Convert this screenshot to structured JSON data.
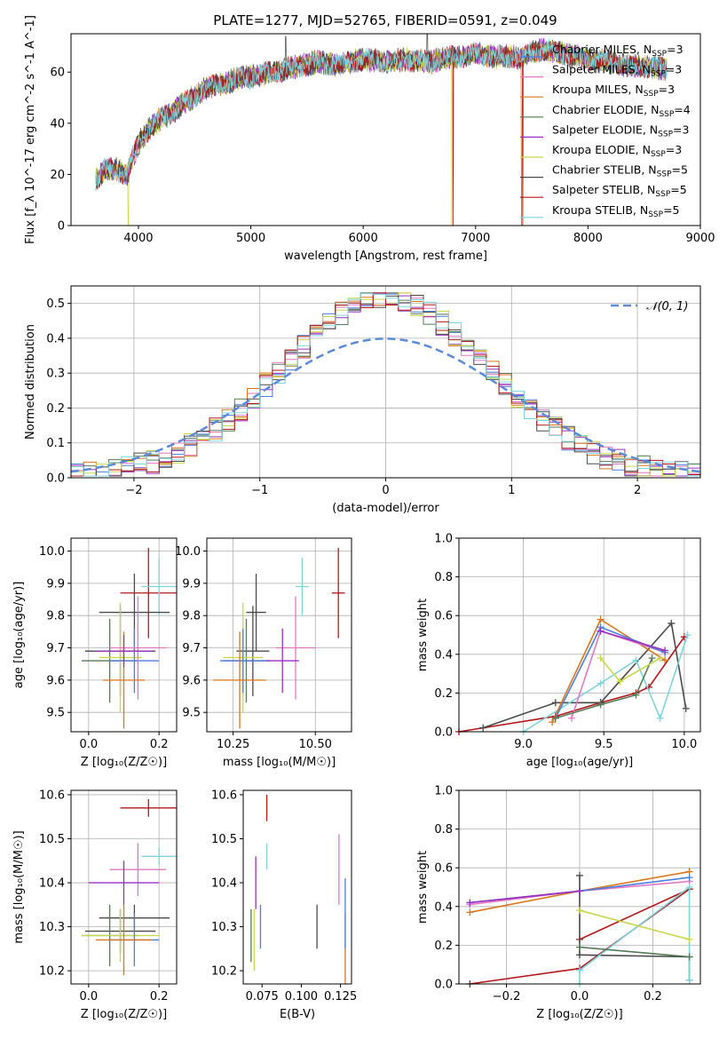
{
  "chart_data": [
    {
      "type": "line",
      "title": "PLATE=1277, MJD=52765, FIBERID=0591, z=0.049",
      "xlabel": "wavelength [Angstrom, rest frame]",
      "ylabel": "Flux [f_λ 10^-17 erg cm^-2 s^-1 A^-1]",
      "xlim": [
        3400,
        9000
      ],
      "ylim": [
        0,
        75
      ],
      "xticks": [
        "4000",
        "5000",
        "6000",
        "7000",
        "8000",
        "9000"
      ],
      "yticks": [
        "0",
        "20",
        "40",
        "60"
      ],
      "spectrum_anchors": {
        "x": [
          3620,
          3700,
          3800,
          3900,
          3950,
          4000,
          4100,
          4200,
          4300,
          4400,
          4500,
          4600,
          4700,
          4800,
          4900,
          5000,
          5200,
          5400,
          5600,
          5800,
          6000,
          6200,
          6400,
          6600,
          6800,
          7000,
          7200,
          7400,
          7600,
          7800,
          8000,
          8200,
          8400,
          8600,
          8700
        ],
        "y": [
          18,
          22,
          22,
          20,
          27,
          32,
          38,
          42,
          44,
          48,
          50,
          54,
          55,
          56,
          58,
          58,
          60,
          62,
          64,
          63,
          65,
          64,
          65,
          64,
          66,
          67,
          66,
          66,
          69,
          67,
          65,
          64,
          62,
          62,
          61
        ]
      },
      "spike_dropouts": [
        {
          "x": 3910,
          "series": "Kroupa ELODIE"
        },
        {
          "x": 6790,
          "series": "Kroupa ELODIE"
        },
        {
          "x": 6800,
          "series": "Salpeter STELIB"
        },
        {
          "x": 7410,
          "series": "Kroupa MILES"
        },
        {
          "x": 7420,
          "series": "Salpeter STELIB"
        }
      ],
      "legend": [
        {
          "label": "Chabrier MILES, N",
          "sub": "SSP",
          "suffix": "=3",
          "color": "#4c7ee0"
        },
        {
          "label": "Salpeter MILES, N",
          "sub": "SSP",
          "suffix": "=3",
          "color": "#e377c2"
        },
        {
          "label": "Kroupa MILES, N",
          "sub": "SSP",
          "suffix": "=3",
          "color": "#d9751a"
        },
        {
          "label": "Chabrier ELODIE, N",
          "sub": "SSP",
          "suffix": "=4",
          "color": "#557a55"
        },
        {
          "label": "Salpeter ELODIE, N",
          "sub": "SSP",
          "suffix": "=3",
          "color": "#9b30c0"
        },
        {
          "label": "Kroupa ELODIE, N",
          "sub": "SSP",
          "suffix": "=3",
          "color": "#c8d74a"
        },
        {
          "label": "Chabrier STELIB, N",
          "sub": "SSP",
          "suffix": "=5",
          "color": "#4a4a4a"
        },
        {
          "label": "Salpeter STELIB, N",
          "sub": "SSP",
          "suffix": "=5",
          "color": "#b2181b"
        },
        {
          "label": "Kroupa STELIB, N",
          "sub": "SSP",
          "suffix": "=5",
          "color": "#7fd3dc"
        }
      ]
    },
    {
      "type": "line",
      "xlabel": "(data-model)/error",
      "ylabel": "Normed distribution",
      "xlim": [
        -2.5,
        2.5
      ],
      "ylim": [
        0,
        0.55
      ],
      "xticks": [
        "−2",
        "−1",
        "0",
        "1",
        "2"
      ],
      "yticks": [
        "0.0",
        "0.1",
        "0.2",
        "0.3",
        "0.4",
        "0.5"
      ],
      "grid": true,
      "legend_label": "𝒩(0, 1)",
      "legend_color": "#5b8bd6"
    },
    {
      "type": "scatter",
      "xlabel": "Z [log₁₀(Z/Z☉)]",
      "ylabel": "age  [log₁₀(age/yr)]",
      "xlim": [
        -0.05,
        0.25
      ],
      "ylim": [
        9.44,
        10.04
      ],
      "xticks": [
        "0.0",
        "0.2"
      ],
      "yticks": [
        "9.5",
        "9.6",
        "9.7",
        "9.8",
        "9.9",
        "10.0"
      ],
      "grid": true,
      "points": [
        {
          "x": 0.17,
          "y": 9.87,
          "xerr": 0.08,
          "yerr": 0.14,
          "color": "#b2181b"
        },
        {
          "x": 0.2,
          "y": 9.89,
          "xerr": 0.05,
          "yerr": 0.09,
          "color": "#7fd3dc"
        },
        {
          "x": 0.13,
          "y": 9.81,
          "xerr": 0.1,
          "yerr": 0.12,
          "color": "#4a4a4a"
        },
        {
          "x": 0.09,
          "y": 9.69,
          "xerr": 0.1,
          "yerr": 0.14,
          "color": "#4a4a4a"
        },
        {
          "x": 0.06,
          "y": 9.66,
          "xerr": 0.08,
          "yerr": 0.13,
          "color": "#557a55"
        },
        {
          "x": 0.09,
          "y": 9.67,
          "xerr": 0.06,
          "yerr": 0.17,
          "color": "#c8d74a"
        },
        {
          "x": 0.13,
          "y": 9.66,
          "xerr": 0.07,
          "yerr": 0.1,
          "color": "#4c7ee0"
        },
        {
          "x": 0.14,
          "y": 9.7,
          "xerr": 0.08,
          "yerr": 0.16,
          "color": "#e377c2"
        },
        {
          "x": 0.1,
          "y": 9.6,
          "xerr": 0.06,
          "yerr": 0.15,
          "color": "#d9751a"
        },
        {
          "x": 0.1,
          "y": 9.69,
          "xerr": 0.08,
          "yerr": 0.05,
          "color": "#9b30c0"
        }
      ]
    },
    {
      "type": "scatter",
      "xlabel": "mass [log₁₀(M/M☉)]",
      "xlim": [
        10.17,
        10.61
      ],
      "ylim": [
        9.44,
        10.04
      ],
      "xticks": [
        "10.25",
        "10.50"
      ],
      "yticks": [
        "9.5",
        "9.6",
        "9.7",
        "9.8",
        "9.9",
        "10.0"
      ],
      "grid": true,
      "points": [
        {
          "x": 10.57,
          "y": 9.87,
          "xerr": 0.02,
          "yerr": 0.14,
          "color": "#b2181b"
        },
        {
          "x": 10.46,
          "y": 9.89,
          "xerr": 0.02,
          "yerr": 0.09,
          "color": "#7fd3dc"
        },
        {
          "x": 10.32,
          "y": 9.81,
          "xerr": 0.03,
          "yerr": 0.12,
          "color": "#4a4a4a"
        },
        {
          "x": 10.31,
          "y": 9.69,
          "xerr": 0.05,
          "yerr": 0.14,
          "color": "#4a4a4a"
        },
        {
          "x": 10.29,
          "y": 9.66,
          "xerr": 0.07,
          "yerr": 0.13,
          "color": "#557a55"
        },
        {
          "x": 10.28,
          "y": 9.67,
          "xerr": 0.06,
          "yerr": 0.17,
          "color": "#c8d74a"
        },
        {
          "x": 10.28,
          "y": 9.66,
          "xerr": 0.07,
          "yerr": 0.1,
          "color": "#4c7ee0"
        },
        {
          "x": 10.44,
          "y": 9.7,
          "xerr": 0.06,
          "yerr": 0.16,
          "color": "#e377c2"
        },
        {
          "x": 10.27,
          "y": 9.6,
          "xerr": 0.08,
          "yerr": 0.15,
          "color": "#d9751a"
        },
        {
          "x": 10.4,
          "y": 9.66,
          "xerr": 0.05,
          "yerr": 0.1,
          "color": "#9b30c0"
        }
      ]
    },
    {
      "type": "line",
      "xlabel": "age  [log₁₀(age/yr)]",
      "ylabel": "mass weight",
      "xlim": [
        8.6,
        10.1
      ],
      "ylim": [
        0,
        1
      ],
      "xticks": [
        "9.0",
        "9.5",
        "10.0"
      ],
      "yticks": [
        "0.0",
        "0.2",
        "0.4",
        "0.6",
        "0.8",
        "1.0"
      ],
      "grid": true,
      "series": [
        {
          "color": "#b2181b",
          "x": [
            8.6,
            9.2,
            9.48,
            9.7,
            9.78,
            10.0
          ],
          "y": [
            0.0,
            0.08,
            0.15,
            0.2,
            0.23,
            0.49
          ]
        },
        {
          "color": "#4a4a4a",
          "x": [
            8.75,
            9.2,
            9.48,
            9.92,
            10.01
          ],
          "y": [
            0.02,
            0.15,
            0.15,
            0.56,
            0.12
          ]
        },
        {
          "color": "#7fd3dc",
          "x": [
            9.0,
            9.48,
            9.7,
            9.85,
            10.02
          ],
          "y": [
            0.0,
            0.25,
            0.37,
            0.07,
            0.5
          ]
        },
        {
          "color": "#d9751a",
          "x": [
            9.18,
            9.48,
            9.88
          ],
          "y": [
            0.05,
            0.58,
            0.37
          ]
        },
        {
          "color": "#e377c2",
          "x": [
            9.3,
            9.48,
            9.88
          ],
          "y": [
            0.07,
            0.52,
            0.41
          ]
        },
        {
          "color": "#4c7ee0",
          "x": [
            9.2,
            9.48,
            9.88
          ],
          "y": [
            0.07,
            0.54,
            0.41
          ]
        },
        {
          "color": "#557a55",
          "x": [
            9.2,
            9.48,
            9.7,
            9.8
          ],
          "y": [
            0.07,
            0.14,
            0.19,
            0.38
          ]
        },
        {
          "color": "#c8d74a",
          "x": [
            9.48,
            9.6,
            9.85
          ],
          "y": [
            0.38,
            0.26,
            0.38
          ]
        },
        {
          "color": "#9b30c0",
          "x": [
            9.48,
            9.88
          ],
          "y": [
            0.52,
            0.42
          ]
        }
      ]
    },
    {
      "type": "scatter",
      "xlabel": "Z [log₁₀(Z/Z☉)]",
      "ylabel": "mass [log₁₀(M/M☉)]",
      "xlim": [
        -0.05,
        0.25
      ],
      "ylim": [
        10.17,
        10.61
      ],
      "xticks": [
        "0.0",
        "0.2"
      ],
      "yticks": [
        "10.2",
        "10.3",
        "10.4",
        "10.5",
        "10.6"
      ],
      "grid": true,
      "points": [
        {
          "x": 0.17,
          "y": 10.57,
          "xerr": 0.08,
          "yerr": 0.02,
          "color": "#b2181b"
        },
        {
          "x": 0.2,
          "y": 10.46,
          "xerr": 0.05,
          "yerr": 0.02,
          "color": "#7fd3dc"
        },
        {
          "x": 0.13,
          "y": 10.32,
          "xerr": 0.1,
          "yerr": 0.03,
          "color": "#4a4a4a"
        },
        {
          "x": 0.09,
          "y": 10.29,
          "xerr": 0.1,
          "yerr": 0.05,
          "color": "#4a4a4a"
        },
        {
          "x": 0.06,
          "y": 10.28,
          "xerr": 0.08,
          "yerr": 0.07,
          "color": "#557a55"
        },
        {
          "x": 0.09,
          "y": 10.28,
          "xerr": 0.11,
          "yerr": 0.06,
          "color": "#c8d74a"
        },
        {
          "x": 0.13,
          "y": 10.27,
          "xerr": 0.07,
          "yerr": 0.06,
          "color": "#4c7ee0"
        },
        {
          "x": 0.14,
          "y": 10.43,
          "xerr": 0.08,
          "yerr": 0.06,
          "color": "#e377c2"
        },
        {
          "x": 0.1,
          "y": 10.27,
          "xerr": 0.08,
          "yerr": 0.08,
          "color": "#d9751a"
        },
        {
          "x": 0.1,
          "y": 10.4,
          "xerr": 0.1,
          "yerr": 0.05,
          "color": "#9b30c0"
        }
      ]
    },
    {
      "type": "scatter",
      "xlabel": "E(B-V)",
      "xlim": [
        0.063,
        0.132
      ],
      "ylim": [
        10.17,
        10.61
      ],
      "xticks": [
        "0.075",
        "0.100",
        "0.125"
      ],
      "yticks": [
        "10.2",
        "10.3",
        "10.4",
        "10.5",
        "10.6"
      ],
      "grid": false,
      "points": [
        {
          "x": 0.078,
          "y": 10.57,
          "yerr": 0.03,
          "color": "#b2181b"
        },
        {
          "x": 0.078,
          "y": 10.46,
          "yerr": 0.03,
          "color": "#7fd3dc"
        },
        {
          "x": 0.071,
          "y": 10.4,
          "yerr": 0.06,
          "color": "#9b30c0"
        },
        {
          "x": 0.068,
          "y": 10.28,
          "yerr": 0.06,
          "color": "#557a55"
        },
        {
          "x": 0.07,
          "y": 10.27,
          "yerr": 0.07,
          "color": "#c8d74a"
        },
        {
          "x": 0.074,
          "y": 10.3,
          "yerr": 0.05,
          "color": "#4c7ee0"
        },
        {
          "x": 0.11,
          "y": 10.3,
          "yerr": 0.05,
          "color": "#4a4a4a"
        },
        {
          "x": 0.124,
          "y": 10.43,
          "yerr": 0.08,
          "color": "#e377c2"
        },
        {
          "x": 0.128,
          "y": 10.25,
          "yerr": 0.08,
          "color": "#d9751a"
        },
        {
          "x": 0.128,
          "y": 10.33,
          "yerr": 0.08,
          "color": "#4c7ee0"
        }
      ]
    },
    {
      "type": "line",
      "xlabel": "Z [log₁₀(Z/Z☉)]",
      "ylabel": "mass weight",
      "xlim": [
        -0.33,
        0.33
      ],
      "ylim": [
        0,
        1
      ],
      "xticks": [
        "−0.2",
        "0.0",
        "0.2"
      ],
      "yticks": [
        "0.0",
        "0.2",
        "0.4",
        "0.6",
        "0.8",
        "1.0"
      ],
      "grid": true,
      "series": [
        {
          "color": "#d9751a",
          "x": [
            -0.3,
            0.0,
            0.3
          ],
          "y": [
            0.37,
            0.48,
            0.58
          ]
        },
        {
          "color": "#e377c2",
          "x": [
            -0.3,
            0.0,
            0.3
          ],
          "y": [
            0.41,
            0.48,
            0.53
          ]
        },
        {
          "color": "#4c7ee0",
          "x": [
            -0.3,
            0.0,
            0.3
          ],
          "y": [
            0.42,
            0.48,
            0.55
          ]
        },
        {
          "color": "#b2181b",
          "x": [
            -0.3,
            0.0,
            0.3,
            0.0,
            0.3
          ],
          "y": [
            0.0,
            0.08,
            0.49,
            0.23,
            0.49
          ]
        },
        {
          "color": "#4a4a4a",
          "x": [
            0.0,
            0.0,
            0.3,
            0.3
          ],
          "y": [
            0.56,
            0.15,
            0.14,
            0.02
          ]
        },
        {
          "color": "#7fd3dc",
          "x": [
            0.0,
            0.0,
            0.3,
            0.3
          ],
          "y": [
            0.0,
            0.07,
            0.5,
            0.02
          ]
        },
        {
          "color": "#557a55",
          "x": [
            0.0,
            0.3
          ],
          "y": [
            0.19,
            0.14
          ]
        },
        {
          "color": "#c8d74a",
          "x": [
            0.0,
            0.3
          ],
          "y": [
            0.38,
            0.23
          ]
        },
        {
          "color": "#9b30c0",
          "x": [
            -0.3,
            0.0
          ],
          "y": [
            0.42,
            0.48
          ]
        }
      ]
    }
  ]
}
